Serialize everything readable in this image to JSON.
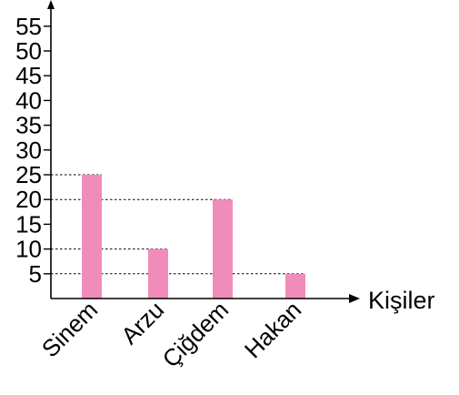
{
  "chart_data": {
    "type": "bar",
    "categories": [
      "Sinem",
      "Arzu",
      "Çiğdem",
      "Hakan"
    ],
    "values": [
      25,
      10,
      20,
      5
    ],
    "xlabel": "Kişiler",
    "ylabel": "",
    "title": "",
    "ylim": [
      0,
      55
    ],
    "yticks": [
      5,
      10,
      15,
      20,
      25,
      30,
      35,
      40,
      45,
      50,
      55
    ],
    "grid": false,
    "dashed_guides_to_bar_tops": true,
    "bar_color": "#f08cb9"
  }
}
